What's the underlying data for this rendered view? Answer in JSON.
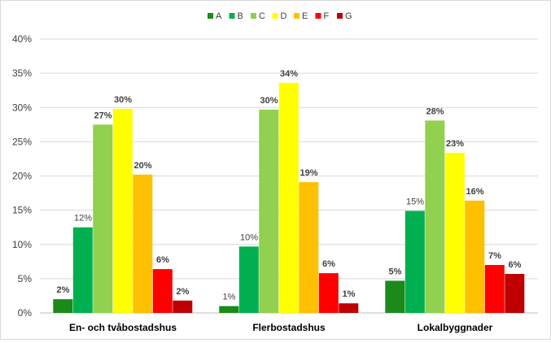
{
  "chart_data": {
    "type": "bar",
    "title": "",
    "xlabel": "",
    "ylabel": "",
    "ylim": [
      0,
      0.4
    ],
    "yticks": [
      "0%",
      "5%",
      "10%",
      "15%",
      "20%",
      "25%",
      "30%",
      "35%",
      "40%"
    ],
    "grid": true,
    "legend_position": "top",
    "categories": [
      "En- och tvåbostadshus",
      "Flerbostadshus",
      "Lokalbyggnader"
    ],
    "series": [
      {
        "name": "A",
        "color": "#1b8a1b",
        "values": [
          0.02,
          0.01,
          0.047
        ],
        "labels": [
          "2%",
          "1%",
          "5%"
        ]
      },
      {
        "name": "B",
        "color": "#00b050",
        "values": [
          0.125,
          0.097,
          0.149
        ],
        "labels": [
          "12%",
          "10%",
          "15%"
        ]
      },
      {
        "name": "C",
        "color": "#92d050",
        "values": [
          0.275,
          0.297,
          0.281
        ],
        "labels": [
          "27%",
          "30%",
          "28%"
        ]
      },
      {
        "name": "D",
        "color": "#ffff00",
        "values": [
          0.298,
          0.336,
          0.234
        ],
        "labels": [
          "30%",
          "34%",
          "23%"
        ]
      },
      {
        "name": "E",
        "color": "#ffc000",
        "values": [
          0.202,
          0.191,
          0.164
        ],
        "labels": [
          "20%",
          "19%",
          "16%"
        ]
      },
      {
        "name": "F",
        "color": "#ff0000",
        "values": [
          0.064,
          0.058,
          0.07
        ],
        "labels": [
          "6%",
          "6%",
          "7%"
        ]
      },
      {
        "name": "G",
        "color": "#c00000",
        "values": [
          0.018,
          0.014,
          0.057
        ],
        "labels": [
          "2%",
          "1%",
          "6%"
        ]
      }
    ]
  }
}
